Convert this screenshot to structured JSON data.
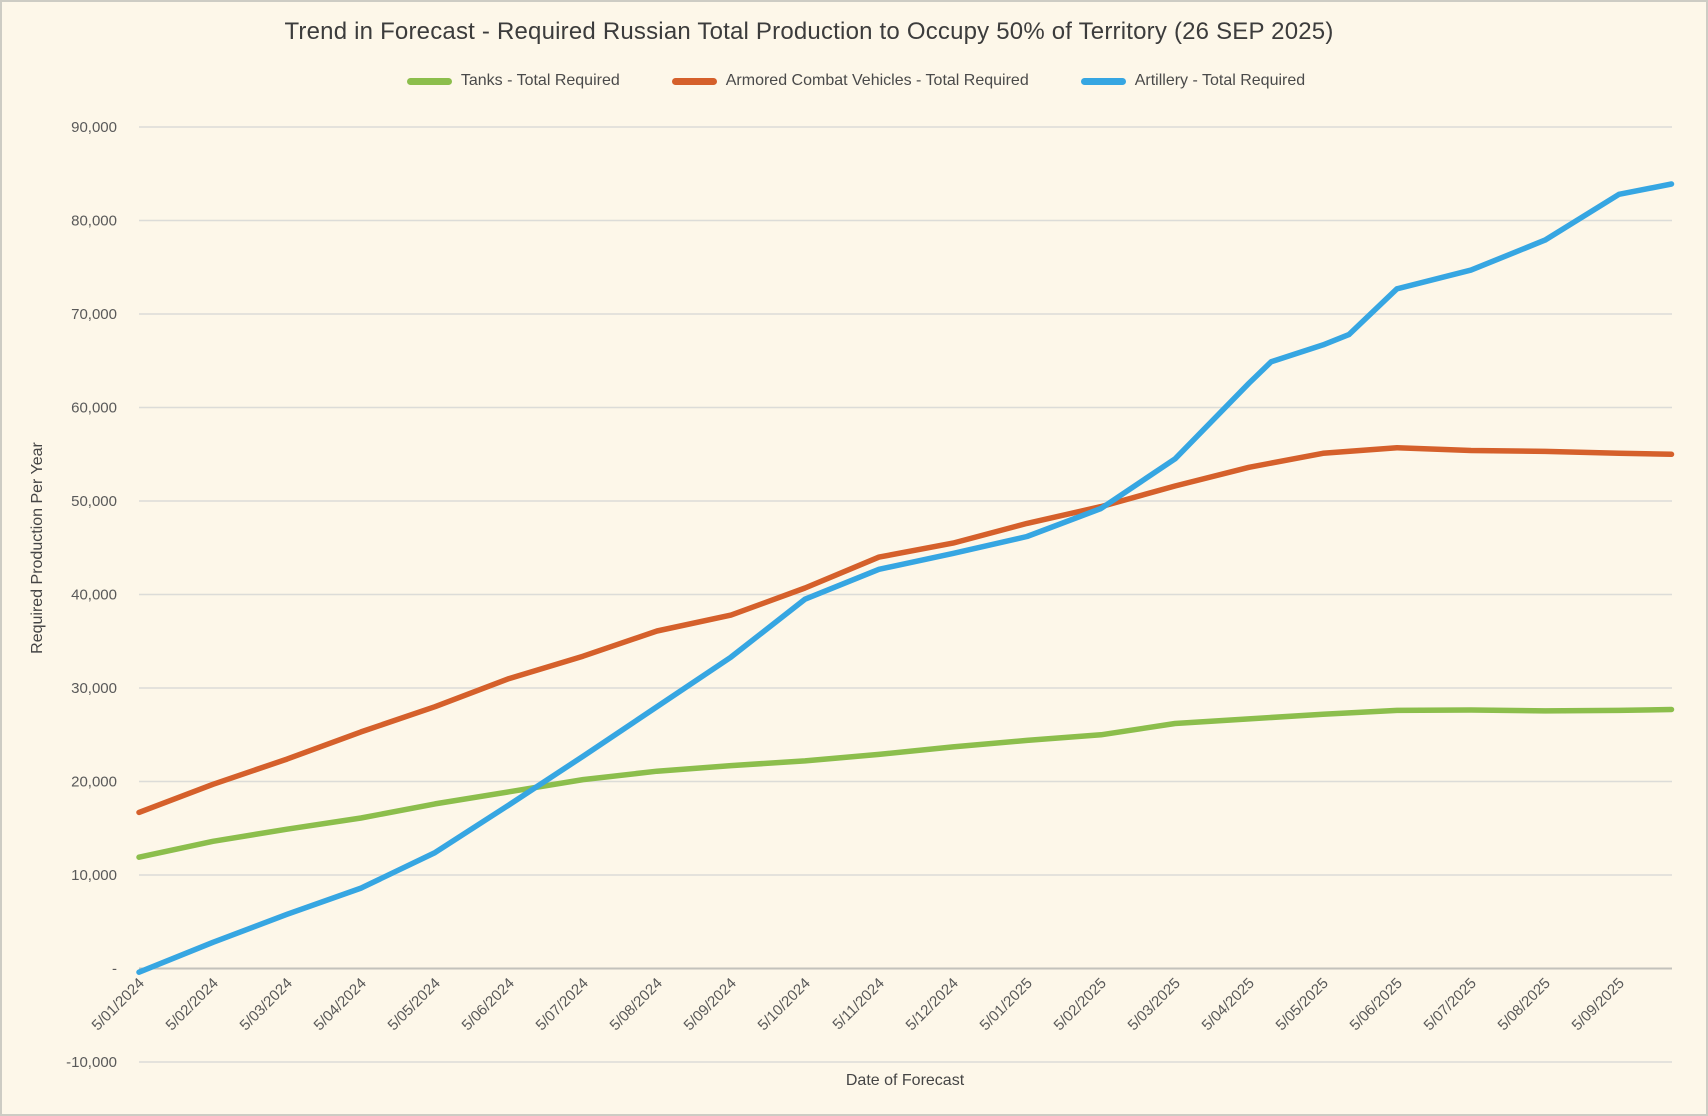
{
  "title": "Trend in Forecast - Required Russian Total Production to Occupy 50% of Territory (26 SEP 2025)",
  "colors": {
    "background": "#FDF7E9",
    "border": "#CDCCC4",
    "gridline": "#DCDCD8",
    "zero_line": "#C3C2BC",
    "tick_text": "#595959",
    "title_text": "#3C3C3C"
  },
  "legend": [
    {
      "id": "tanks",
      "label": "Tanks - Total Required",
      "color": "#8CBE4C"
    },
    {
      "id": "acv",
      "label": "Armored Combat Vehicles - Total Required",
      "color": "#D5602B"
    },
    {
      "id": "artillery",
      "label": "Artillery - Total Required",
      "color": "#36A6E2"
    }
  ],
  "axes": {
    "xlabel": "Date of Forecast",
    "ylabel": "Required Production Per Year"
  },
  "chart_data": {
    "type": "line",
    "title": "Trend in Forecast - Required Russian Total Production to Occupy 50% of Territory (26 SEP 2025)",
    "xlabel": "Date of Forecast",
    "ylabel": "Required Production Per Year",
    "ylim": [
      -10000,
      90000
    ],
    "ytick_step": 10000,
    "zero_tick_label": "-",
    "grid": true,
    "legend_position": "top",
    "x_tick_labels": [
      "5/01/2024",
      "5/02/2024",
      "5/03/2024",
      "5/04/2024",
      "5/05/2024",
      "5/06/2024",
      "5/07/2024",
      "5/08/2024",
      "5/09/2024",
      "5/10/2024",
      "5/11/2024",
      "5/12/2024",
      "5/01/2025",
      "5/02/2025",
      "5/03/2025",
      "5/04/2025",
      "5/05/2025",
      "5/06/2025",
      "5/07/2025",
      "5/08/2025",
      "5/09/2025"
    ],
    "x_unit": "months since 5/01/2024 tick; series extend past last tick to 26 SEP 2025",
    "series": [
      {
        "id": "tanks",
        "name": "Tanks - Total Required",
        "color": "#8CBE4C",
        "points": [
          [
            0,
            11900
          ],
          [
            1,
            13600
          ],
          [
            2,
            14900
          ],
          [
            3,
            16100
          ],
          [
            4,
            17600
          ],
          [
            5,
            18900
          ],
          [
            6,
            20200
          ],
          [
            7,
            21100
          ],
          [
            8,
            21700
          ],
          [
            9,
            22200
          ],
          [
            10,
            22900
          ],
          [
            11,
            23700
          ],
          [
            12,
            24400
          ],
          [
            13,
            25000
          ],
          [
            14,
            26200
          ],
          [
            15,
            26700
          ],
          [
            16,
            27200
          ],
          [
            17,
            27600
          ],
          [
            18,
            27650
          ],
          [
            19,
            27550
          ],
          [
            20,
            27600
          ],
          [
            20.71,
            27700
          ]
        ]
      },
      {
        "id": "acv",
        "name": "Armored Combat Vehicles - Total Required",
        "color": "#D5602B",
        "points": [
          [
            0,
            16700
          ],
          [
            1,
            19700
          ],
          [
            2,
            22400
          ],
          [
            3,
            25300
          ],
          [
            4,
            28000
          ],
          [
            5,
            31000
          ],
          [
            6,
            33400
          ],
          [
            7,
            36100
          ],
          [
            8,
            37800
          ],
          [
            9,
            40700
          ],
          [
            10,
            44000
          ],
          [
            11,
            45500
          ],
          [
            12,
            47600
          ],
          [
            13,
            49400
          ],
          [
            14,
            51600
          ],
          [
            15,
            53600
          ],
          [
            16,
            55100
          ],
          [
            17,
            55700
          ],
          [
            18,
            55400
          ],
          [
            19,
            55300
          ],
          [
            20,
            55100
          ],
          [
            20.71,
            55000
          ]
        ]
      },
      {
        "id": "artillery",
        "name": "Artillery - Total Required",
        "color": "#36A6E2",
        "points": [
          [
            0,
            -400
          ],
          [
            1,
            2800
          ],
          [
            2,
            5800
          ],
          [
            3,
            8600
          ],
          [
            4,
            12400
          ],
          [
            5,
            17500
          ],
          [
            6,
            22700
          ],
          [
            7,
            28000
          ],
          [
            8,
            33300
          ],
          [
            9,
            39500
          ],
          [
            10,
            42700
          ],
          [
            11,
            44400
          ],
          [
            12,
            46200
          ],
          [
            13,
            49200
          ],
          [
            14,
            54500
          ],
          [
            15,
            62600
          ],
          [
            15.3,
            64900
          ],
          [
            16,
            66700
          ],
          [
            16.35,
            67800
          ],
          [
            17,
            72700
          ],
          [
            18,
            74700
          ],
          [
            19,
            77900
          ],
          [
            20,
            82800
          ],
          [
            20.71,
            83900
          ]
        ]
      }
    ]
  }
}
